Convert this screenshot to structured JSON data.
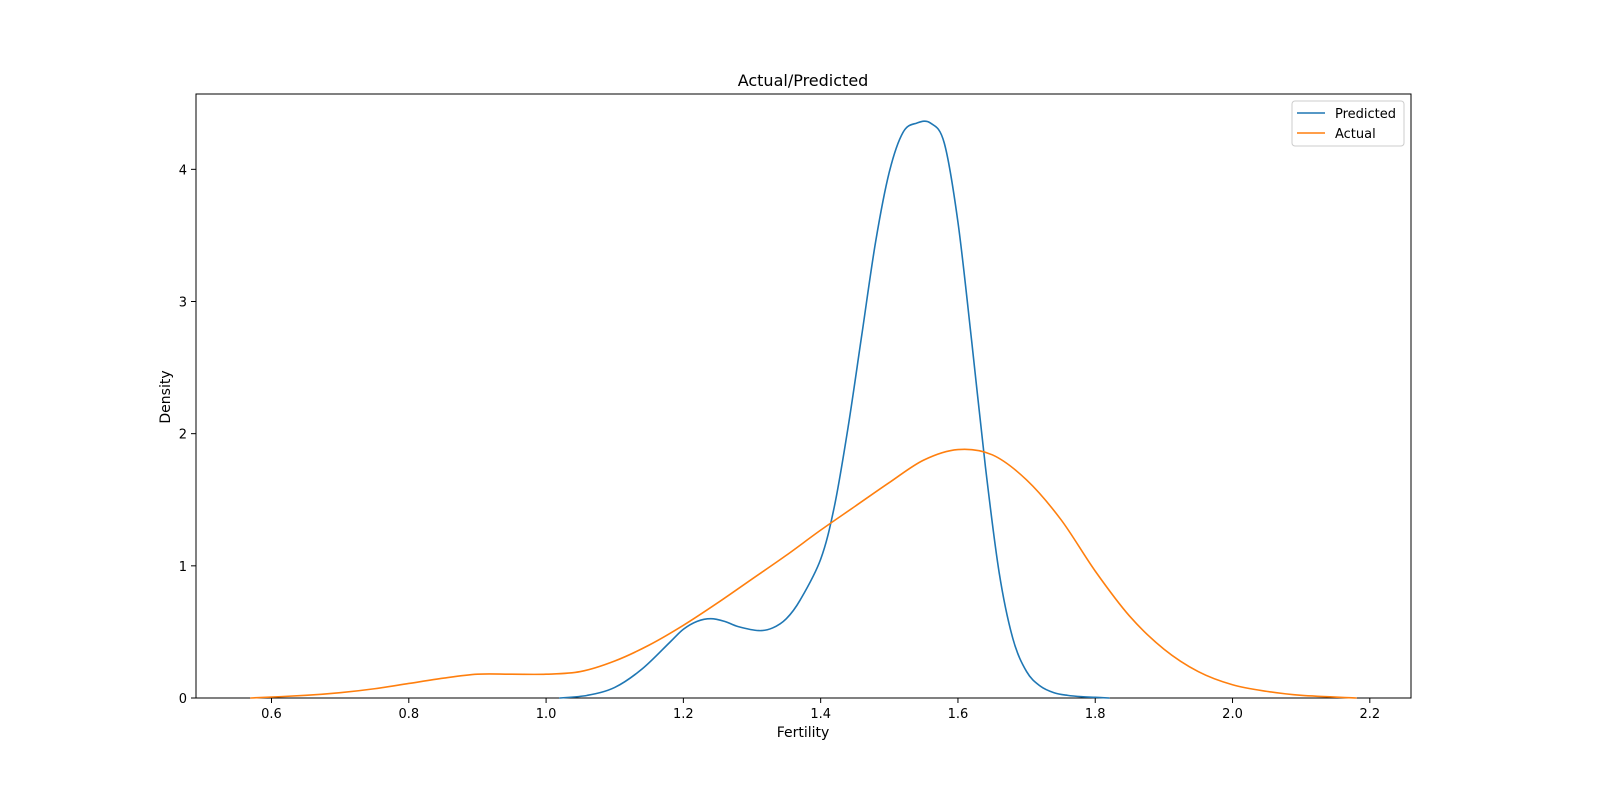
{
  "chart_data": {
    "type": "line",
    "title": "Actual/Predicted",
    "xlabel": "Fertility",
    "ylabel": "Density",
    "xlim": [
      0.49,
      2.26
    ],
    "ylim": [
      0,
      4.57
    ],
    "xticks": [
      0.6,
      0.8,
      1.0,
      1.2,
      1.4,
      1.6,
      1.8,
      2.0,
      2.2
    ],
    "xtick_labels": [
      "0.6",
      "0.8",
      "1.0",
      "1.2",
      "1.4",
      "1.6",
      "1.8",
      "2.0",
      "2.2"
    ],
    "yticks": [
      0,
      1,
      2,
      3,
      4
    ],
    "ytick_labels": [
      "0",
      "1",
      "2",
      "3",
      "4"
    ],
    "grid": false,
    "legend_position": "top-right",
    "series": [
      {
        "name": "Predicted",
        "color": "#1f77b4",
        "x": [
          1.02,
          1.06,
          1.1,
          1.14,
          1.18,
          1.2,
          1.22,
          1.24,
          1.26,
          1.28,
          1.31,
          1.33,
          1.35,
          1.37,
          1.4,
          1.42,
          1.44,
          1.46,
          1.48,
          1.5,
          1.52,
          1.54,
          1.56,
          1.58,
          1.6,
          1.62,
          1.64,
          1.66,
          1.68,
          1.7,
          1.72,
          1.74,
          1.76,
          1.78,
          1.8,
          1.82
        ],
        "values": [
          0.0,
          0.02,
          0.08,
          0.22,
          0.42,
          0.52,
          0.58,
          0.6,
          0.58,
          0.54,
          0.51,
          0.53,
          0.6,
          0.74,
          1.05,
          1.45,
          2.05,
          2.75,
          3.45,
          3.98,
          4.28,
          4.35,
          4.35,
          4.2,
          3.6,
          2.7,
          1.75,
          0.95,
          0.45,
          0.2,
          0.09,
          0.04,
          0.02,
          0.01,
          0.005,
          0.0
        ]
      },
      {
        "name": "Actual",
        "color": "#ff7f0e",
        "x": [
          0.57,
          0.65,
          0.7,
          0.75,
          0.8,
          0.85,
          0.9,
          0.95,
          1.0,
          1.05,
          1.1,
          1.15,
          1.2,
          1.25,
          1.3,
          1.35,
          1.4,
          1.45,
          1.5,
          1.55,
          1.6,
          1.65,
          1.7,
          1.75,
          1.8,
          1.85,
          1.9,
          1.95,
          2.0,
          2.05,
          2.1,
          2.18
        ],
        "values": [
          0.0,
          0.02,
          0.04,
          0.07,
          0.11,
          0.15,
          0.18,
          0.18,
          0.18,
          0.2,
          0.28,
          0.4,
          0.55,
          0.72,
          0.9,
          1.08,
          1.27,
          1.45,
          1.63,
          1.8,
          1.88,
          1.84,
          1.65,
          1.35,
          0.96,
          0.62,
          0.37,
          0.2,
          0.1,
          0.05,
          0.02,
          0.0
        ]
      }
    ]
  }
}
